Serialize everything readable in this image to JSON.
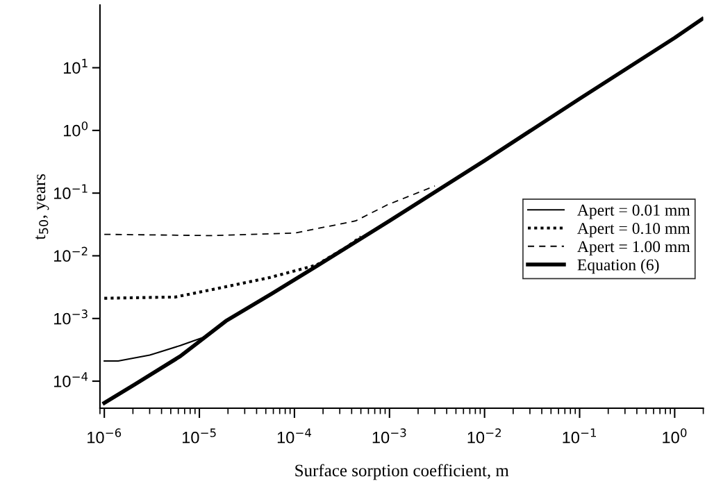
{
  "chart_data": {
    "type": "line",
    "xlabel": "Surface sorption coefficient, m",
    "ylabel": "t$_{50}$, years",
    "log": "xy",
    "grid": false,
    "legend": "right",
    "xlim": [
      9e-07,
      2
    ],
    "ylim": [
      3.7e-05,
      100
    ],
    "xticks": [
      {
        "value": 1e-06,
        "label": "10$^{−6}$"
      },
      {
        "value": 1e-05,
        "label": "10$^{−5}$"
      },
      {
        "value": 0.0001,
        "label": "10$^{−4}$"
      },
      {
        "value": 0.001,
        "label": "10$^{−3}$"
      },
      {
        "value": 0.01,
        "label": "10$^{−2}$"
      },
      {
        "value": 0.1,
        "label": "10$^{−1}$"
      },
      {
        "value": 1,
        "label": "10$^{0}$"
      }
    ],
    "yticks": [
      {
        "value": 0.0001,
        "label": "10$^{−4}$"
      },
      {
        "value": 0.001,
        "label": "10$^{−3}$"
      },
      {
        "value": 0.01,
        "label": "10$^{−2}$"
      },
      {
        "value": 0.1,
        "label": "10$^{−1}$"
      },
      {
        "value": 1,
        "label": "10$^{0}$"
      },
      {
        "value": 10,
        "label": "10$^{1}$"
      }
    ],
    "series": [
      {
        "name": "Apert = 0.01 mm",
        "color": "#000000",
        "line_style": "solid",
        "x": [
          1e-06,
          1.4e-06,
          3e-06,
          6.3e-06,
          1.1e-05,
          1.9e-05
        ],
        "values": [
          0.00021,
          0.00021,
          0.00026,
          0.00037,
          0.0005,
          0.00091
        ]
      },
      {
        "name": "Apert = 0.10 mm",
        "color": "#000000",
        "line_style": "dotted",
        "x": [
          1e-06,
          5.6e-06,
          1.7e-05,
          5.5e-05,
          0.00017,
          0.00036,
          0.0005
        ],
        "values": [
          0.0021,
          0.0022,
          0.0031,
          0.0045,
          0.0071,
          0.014,
          0.02
        ]
      },
      {
        "name": "Apert = 1.00 mm",
        "color": "#000000",
        "line_style": "dashed",
        "x": [
          1e-06,
          1.3e-05,
          0.0001,
          0.00044,
          0.00095,
          0.003
        ],
        "values": [
          0.022,
          0.021,
          0.023,
          0.036,
          0.065,
          0.13
        ]
      },
      {
        "name": "Equation (6)",
        "color": "#000000",
        "line_style": "solid",
        "x": [
          1e-06,
          2.1e-06,
          6.3e-06,
          1.9e-05,
          5.8e-05,
          0.00017,
          0.001,
          0.01,
          0.1,
          1,
          1.95
        ],
        "values": [
          4.5e-05,
          8.9e-05,
          0.00025,
          0.00091,
          0.0025,
          0.0068,
          0.036,
          0.33,
          3.2,
          30,
          60
        ]
      }
    ]
  }
}
